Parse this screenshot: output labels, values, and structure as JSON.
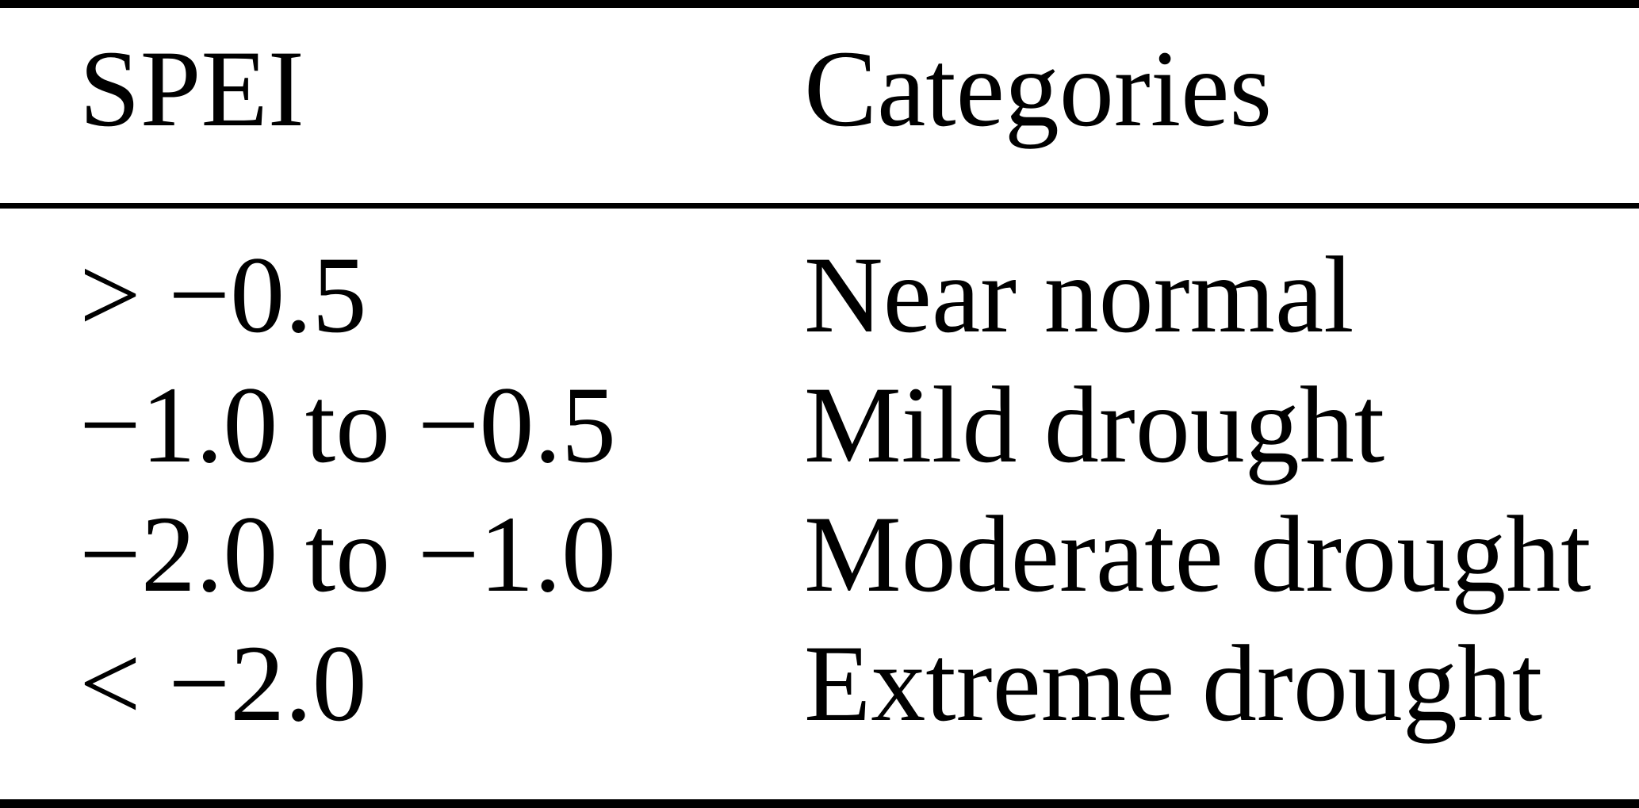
{
  "table": {
    "columns": [
      "SPEI",
      "Categories"
    ],
    "rows": [
      {
        "spei": "> −0.5",
        "category": "Near normal"
      },
      {
        "spei": "−1.0 to −0.5",
        "category": "Mild drought"
      },
      {
        "spei": "−2.0 to −1.0",
        "category": "Moderate drought"
      },
      {
        "spei": "< −2.0",
        "category": "Extreme drought"
      }
    ]
  },
  "colors": {
    "text": "#000000",
    "background": "#ffffff",
    "rule": "#000000"
  }
}
